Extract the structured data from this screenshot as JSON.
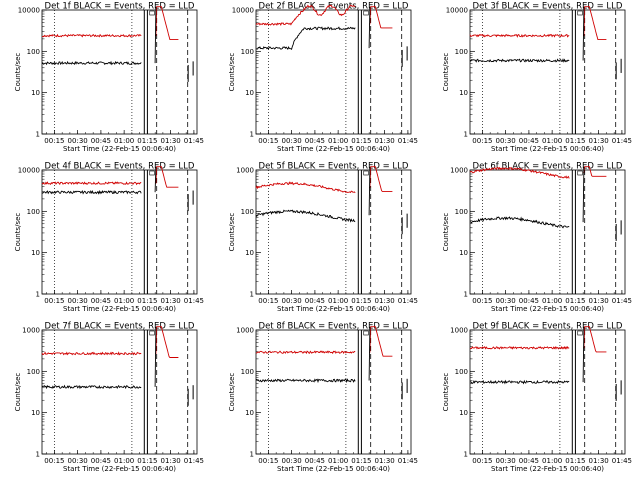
{
  "chart_data": {
    "type": "line",
    "ylabel": "Counts/sec",
    "xlabel": "Start Time (22-Feb-15 00:06:40)",
    "yscale": "log",
    "ylim": [
      1,
      1000
    ],
    "x_minutes_range": [
      7,
      107
    ],
    "x_tick_labels": [
      "00:15",
      "00:30",
      "00:45",
      "01:00",
      "01:15",
      "01:30",
      "01:45"
    ],
    "x_tick_minutes": [
      15,
      30,
      45,
      60,
      75,
      90,
      105
    ],
    "x_edge_labels_panel1": [
      "00:15",
      "00:30",
      "00:45",
      "01:00",
      "01:15",
      "01:30",
      "01:45"
    ],
    "y_tick_labels": [
      "1",
      "10",
      "100",
      "1000"
    ],
    "y_tick_labels_top": [
      "1",
      "10",
      "100",
      "10000"
    ],
    "series_colors": {
      "events": "#000000",
      "lld": "#d00000"
    },
    "vertical_markers": {
      "dotted_minutes": [
        15,
        65
      ],
      "solid_minutes": [
        73,
        75
      ],
      "dashed_minutes": [
        81,
        101
      ]
    },
    "panels": [
      {
        "title": "Det 1f BLACK = Events, RED = LLD",
        "events_level": 52,
        "lld_level": 240,
        "top_label": "10000",
        "shape": "flat"
      },
      {
        "title": "Det 2f BLACK = Events, RED = LLD",
        "events_level": 120,
        "lld_level": 460,
        "top_label": "10000",
        "shape": "rise"
      },
      {
        "title": "Det 3f BLACK = Events, RED = LLD",
        "events_level": 60,
        "lld_level": 240,
        "top_label": "10000",
        "shape": "flat"
      },
      {
        "title": "Det 4f BLACK = Events, RED = LLD",
        "events_level": 290,
        "lld_level": 480,
        "top_label": "10000",
        "shape": "flat"
      },
      {
        "title": "Det 5f BLACK = Events, RED = LLD",
        "events_level": 80,
        "lld_level": 380,
        "top_label": "1000",
        "shape": "bump"
      },
      {
        "title": "Det 6f BLACK = Events, RED = LLD",
        "events_level": 55,
        "lld_level": 880,
        "top_label": "1000",
        "shape": "bump"
      },
      {
        "title": "Det 7f BLACK = Events, RED = LLD",
        "events_level": 42,
        "lld_level": 270,
        "top_label": "1000",
        "shape": "flat"
      },
      {
        "title": "Det 8f BLACK = Events, RED = LLD",
        "events_level": 60,
        "lld_level": 290,
        "top_label": "1000",
        "shape": "flat"
      },
      {
        "title": "Det 9f BLACK = Events, RED = LLD",
        "events_level": 55,
        "lld_level": 370,
        "top_label": "1000",
        "shape": "flat"
      }
    ]
  }
}
